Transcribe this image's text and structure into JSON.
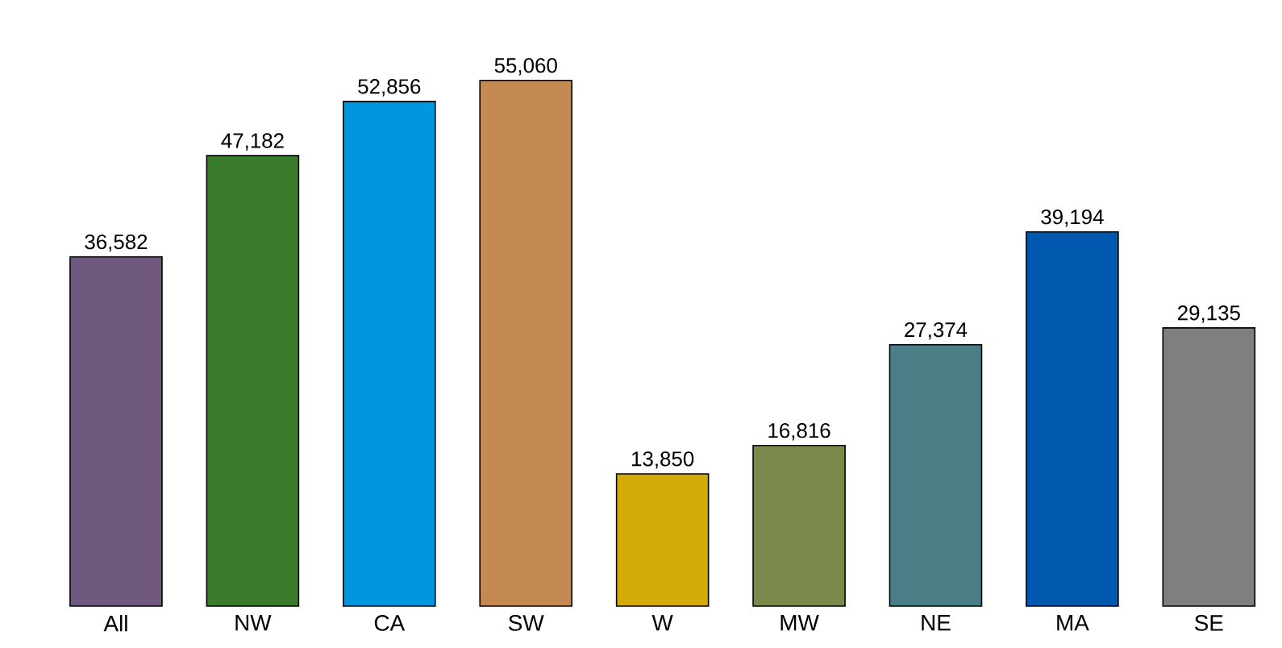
{
  "chart_data": {
    "type": "bar",
    "categories": [
      "All",
      "NW",
      "CA",
      "SW",
      "W",
      "MW",
      "NE",
      "MA",
      "SE"
    ],
    "values": [
      36582,
      47182,
      52856,
      55060,
      13850,
      16816,
      27374,
      39194,
      29135
    ],
    "value_labels": [
      "36,582",
      "47,182",
      "52,856",
      "55,060",
      "13,850",
      "16,816",
      "27,374",
      "39,194",
      "29,135"
    ],
    "colors": [
      "#6f587e",
      "#3a7b2e",
      "#0096de",
      "#c48a52",
      "#d4aa0a",
      "#7a8a4a",
      "#4a7f88",
      "#0059ae",
      "#7f7f7f"
    ]
  }
}
